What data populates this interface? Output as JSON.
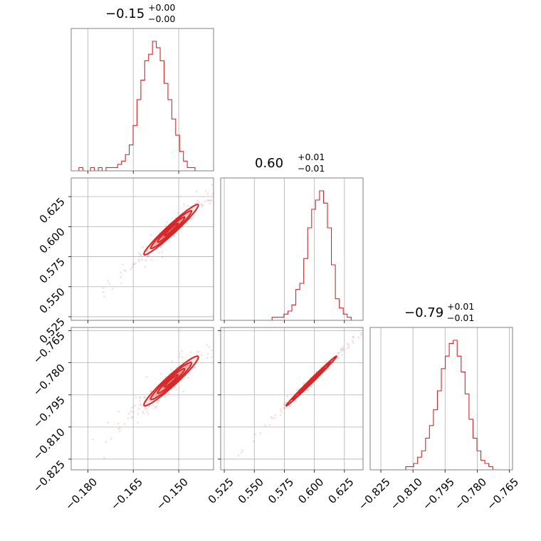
{
  "chart_data": {
    "type": "corner",
    "color": "#d62728",
    "parameters": [
      {
        "title": {
          "median": "−0.15",
          "plus": "+0.00",
          "minus": "−0.00"
        },
        "range": [
          -0.1855,
          -0.1385
        ],
        "ticks": [
          -0.18,
          -0.165,
          -0.15
        ],
        "tick_labels": [
          "−0.180",
          "−0.165",
          "−0.150"
        ],
        "hist": {
          "bins": [
            -0.1855,
            -0.1395
          ],
          "counts": [
            0,
            0,
            1,
            0,
            0,
            1,
            0,
            1,
            0,
            1,
            1,
            1,
            2,
            3,
            5,
            8,
            14,
            22,
            28,
            34,
            36,
            40,
            38,
            34,
            27,
            22,
            16,
            11,
            6,
            3,
            1,
            1,
            0,
            0,
            0,
            0
          ]
        }
      },
      {
        "title": {
          "median": "0.60",
          "plus": "+0.01",
          "minus": "−0.01"
        },
        "range": [
          0.522,
          0.6405
        ],
        "ticks": [
          0.525,
          0.55,
          0.575,
          0.6,
          0.625
        ],
        "tick_labels": [
          "0.525",
          "0.550",
          "0.575",
          "0.600",
          "0.625"
        ],
        "hist": {
          "bins": [
            0.522,
            0.6405
          ],
          "counts": [
            0,
            0,
            0,
            0,
            0,
            0,
            0,
            0,
            0,
            0,
            0,
            0,
            0,
            1,
            1,
            1,
            2,
            3,
            5,
            10,
            12,
            20,
            30,
            36,
            39,
            42,
            38,
            30,
            18,
            7,
            4,
            2,
            1,
            0,
            0,
            0
          ]
        }
      },
      {
        "title": {
          "median": "−0.79",
          "plus": "+0.01",
          "minus": "−0.01"
        },
        "range": [
          -0.83,
          -0.7635
        ],
        "ticks": [
          -0.825,
          -0.81,
          -0.795,
          -0.78,
          -0.765
        ],
        "tick_labels": [
          "−0.825",
          "−0.810",
          "−0.795",
          "−0.780",
          "−0.765"
        ],
        "hist": {
          "bins": [
            -0.83,
            -0.7635
          ],
          "counts": [
            0,
            0,
            0,
            0,
            0,
            0,
            0,
            0,
            0,
            1,
            1,
            2,
            4,
            6,
            10,
            14,
            19,
            25,
            32,
            36,
            40,
            41,
            36,
            31,
            24,
            16,
            10,
            6,
            3,
            2,
            1,
            0,
            0,
            0,
            0,
            0
          ]
        }
      }
    ],
    "pairs": [
      {
        "x_param": 0,
        "y_param": 1,
        "mean": [
          -0.1525,
          0.5975
        ],
        "std": [
          0.0045,
          0.0105
        ],
        "corr": 0.97
      },
      {
        "x_param": 0,
        "y_param": 2,
        "mean": [
          -0.1525,
          -0.7885
        ],
        "std": [
          0.0045,
          0.0058
        ],
        "corr": 0.96
      },
      {
        "x_param": 1,
        "y_param": 2,
        "mean": [
          0.5975,
          -0.7885
        ],
        "std": [
          0.0105,
          0.0058
        ],
        "corr": 0.995
      }
    ],
    "contour_levels_sigma": [
      0.5,
      1.0,
      1.5,
      2.0
    ],
    "grid": true
  }
}
